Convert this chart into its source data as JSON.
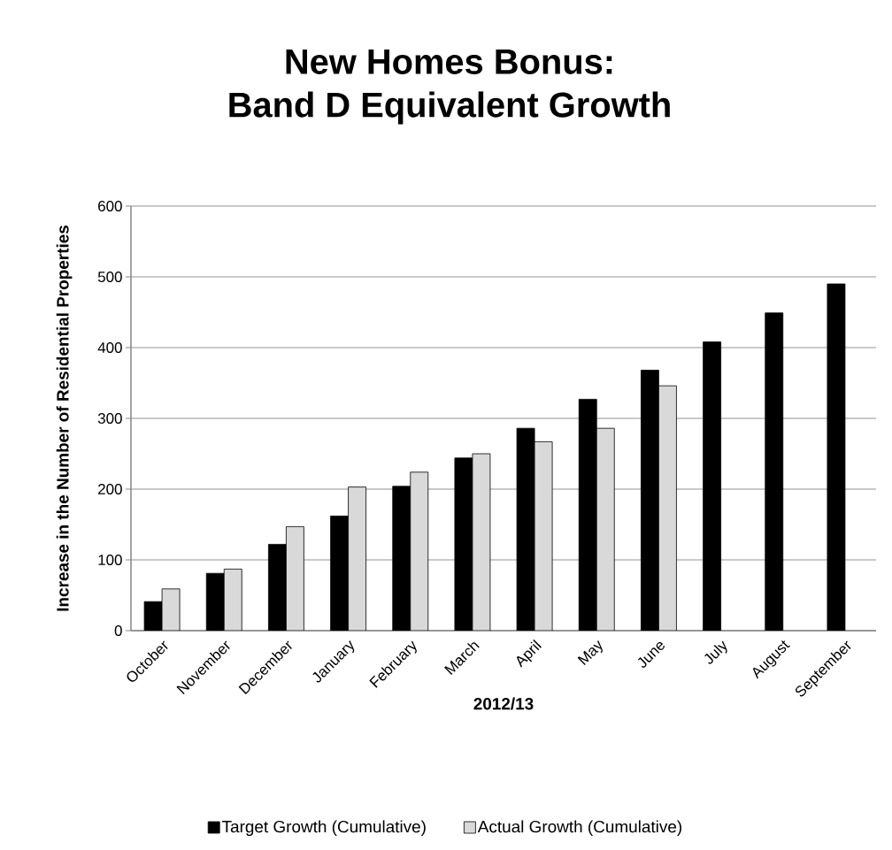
{
  "chart_data": {
    "type": "bar",
    "title": "New Homes Bonus:",
    "subtitle": "Band D Equivalent Growth",
    "xlabel": "2012/13",
    "ylabel": "Increase in the Number of Residential Properties",
    "categories": [
      "October",
      "November",
      "December",
      "January",
      "February",
      "March",
      "April",
      "May",
      "June",
      "July",
      "August",
      "September"
    ],
    "series": [
      {
        "name": "Target Growth (Cumulative)",
        "color": "#000000",
        "values": [
          41,
          81,
          122,
          162,
          204,
          244,
          286,
          327,
          368,
          408,
          449,
          490
        ]
      },
      {
        "name": "Actual Growth (Cumulative)",
        "color": "#d9d9d9",
        "values": [
          59,
          87,
          147,
          203,
          224,
          250,
          267,
          286,
          346,
          null,
          null,
          null
        ]
      }
    ],
    "ylim": [
      0,
      600
    ],
    "yticks": [
      0,
      100,
      200,
      300,
      400,
      500,
      600
    ],
    "grid": "y",
    "legend": "bottom"
  }
}
